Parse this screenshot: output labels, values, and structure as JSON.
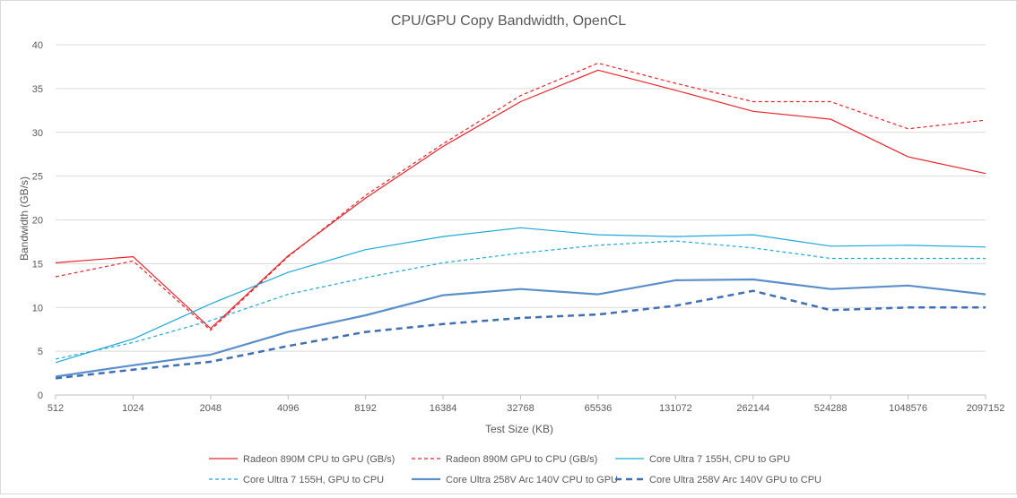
{
  "chart_data": {
    "type": "line",
    "title": "CPU/GPU Copy Bandwidth, OpenCL",
    "xlabel": "Test Size (KB)",
    "ylabel": "Bandwidth (GB/s)",
    "ylim": [
      0,
      40
    ],
    "yticks": [
      "0",
      "5",
      "10",
      "15",
      "20",
      "25",
      "30",
      "35",
      "40"
    ],
    "grid": "horizontal",
    "legend_position": "bottom",
    "categories": [
      "512",
      "1024",
      "2048",
      "4096",
      "8192",
      "16384",
      "32768",
      "65536",
      "131072",
      "262144",
      "524288",
      "1048576",
      "2097152"
    ],
    "series": [
      {
        "name": "Radeon 890M CPU to GPU (GB/s)",
        "color": "#e8262b",
        "style": "solid",
        "values": [
          15.1,
          15.8,
          7.6,
          15.9,
          22.5,
          28.4,
          33.5,
          37.1,
          34.8,
          32.4,
          31.5,
          27.2,
          25.3
        ]
      },
      {
        "name": "Radeon 890M GPU to CPU (GB/s)",
        "color": "#e8262b",
        "style": "dashed",
        "values": [
          13.5,
          15.3,
          7.4,
          15.8,
          22.8,
          28.7,
          34.2,
          37.9,
          35.6,
          33.5,
          33.5,
          30.4,
          31.4
        ]
      },
      {
        "name": "Core Ultra 7 155H, CPU to GPU",
        "color": "#1fa9d8",
        "style": "solid",
        "values": [
          3.7,
          6.4,
          10.4,
          14.0,
          16.6,
          18.1,
          19.1,
          18.3,
          18.1,
          18.3,
          17.0,
          17.1,
          16.9
        ]
      },
      {
        "name": "Core Ultra 7 155H, GPU to CPU",
        "color": "#1fa9d8",
        "style": "dashed",
        "values": [
          4.1,
          6.0,
          8.5,
          11.5,
          13.4,
          15.1,
          16.2,
          17.1,
          17.6,
          16.8,
          15.6,
          15.6,
          15.6
        ]
      },
      {
        "name": "Core Ultra 258V Arc 140V CPU to GPU",
        "color": "#5a8fcc",
        "style": "solid-thick",
        "values": [
          2.1,
          3.4,
          4.6,
          7.2,
          9.1,
          11.4,
          12.1,
          11.5,
          13.1,
          13.2,
          12.1,
          12.5,
          11.5
        ]
      },
      {
        "name": "Core Ultra 258V Arc 140V GPU to CPU",
        "color": "#3f6fb5",
        "style": "dashed-thick",
        "values": [
          1.9,
          2.9,
          3.8,
          5.6,
          7.2,
          8.1,
          8.8,
          9.2,
          10.2,
          11.9,
          9.7,
          10.0,
          10.0
        ]
      }
    ]
  }
}
